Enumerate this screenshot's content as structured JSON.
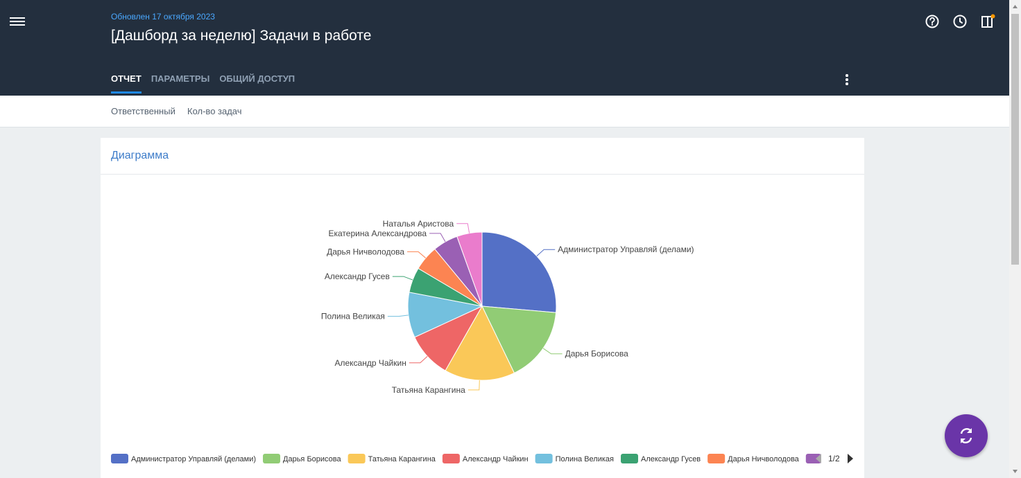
{
  "header": {
    "updated": "Обновлен 17 октября 2023",
    "title": "[Дашборд за неделю] Задачи в работе",
    "tabs": [
      {
        "label": "ОТЧЕТ",
        "active": true
      },
      {
        "label": "ПАРАМЕТРЫ",
        "active": false
      },
      {
        "label": "ОБЩИЙ ДОСТУП",
        "active": false
      }
    ],
    "icons": [
      "menu-icon",
      "help-icon",
      "history-icon",
      "panel-icon",
      "more-vert-icon"
    ]
  },
  "subbar": {
    "fields": [
      "Ответственный",
      "Кол-во задач"
    ]
  },
  "card": {
    "title": "Диаграмма"
  },
  "chart_data": {
    "type": "pie",
    "categories": [
      "Администратор Управляй (делами)",
      "Дарья Борисова",
      "Татьяна Карангина",
      "Александр Чайкин",
      "Полина Великая",
      "Александр Гусев",
      "Дарья Ничволодова",
      "Екатерина Александрова",
      "Наталья Аристова"
    ],
    "values": [
      24,
      15,
      14,
      9,
      9,
      5,
      5,
      5,
      5
    ],
    "colors": [
      "#5470c6",
      "#91cc75",
      "#fac858",
      "#ee6666",
      "#73c0de",
      "#3ba272",
      "#fc8452",
      "#9a60b4",
      "#ea7ccc"
    ],
    "legend": {
      "position": "bottom",
      "visible_items": [
        "Администратор Управляй (делами)",
        "Дарья Борисова",
        "Татьяна Карангина",
        "Александр Чайкин",
        "Полина Великая",
        "Александр Гусев",
        "Дарья Ничволодова"
      ],
      "page": "1/2"
    }
  },
  "fab": {
    "icon": "sync-icon"
  }
}
